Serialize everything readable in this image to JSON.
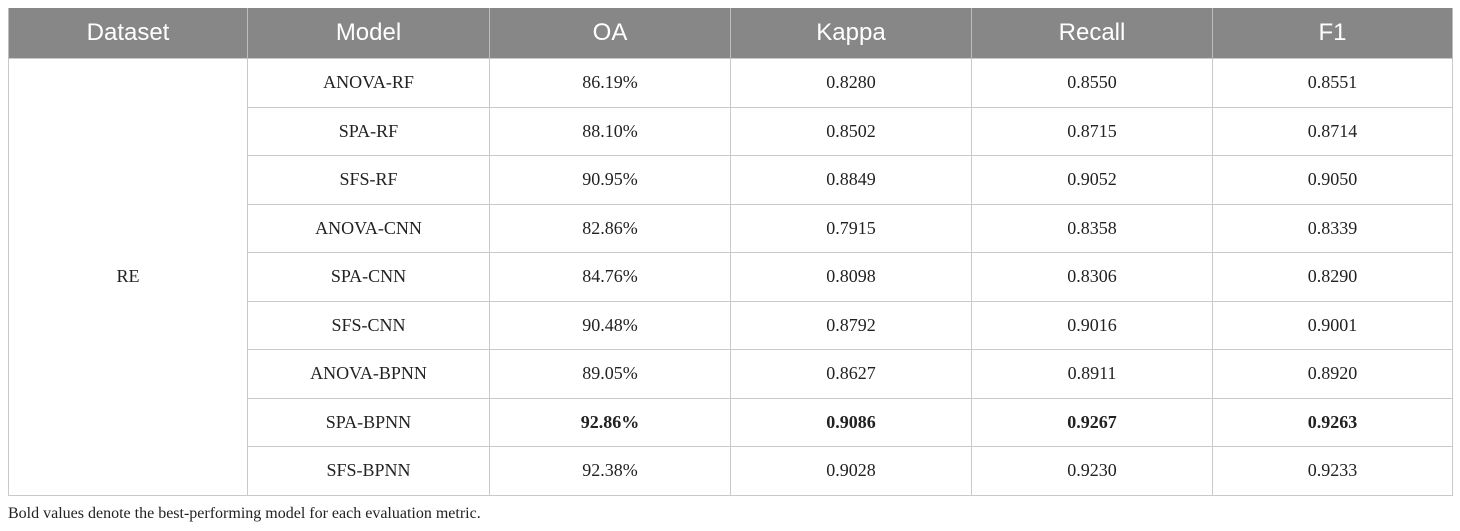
{
  "table": {
    "headers": [
      "Dataset",
      "Model",
      "OA",
      "Kappa",
      "Recall",
      "F1"
    ],
    "dataset": "RE",
    "rows": [
      {
        "model": "ANOVA-RF",
        "oa": "86.19%",
        "kappa": "0.8280",
        "recall": "0.8550",
        "f1": "0.8551",
        "bold": false
      },
      {
        "model": "SPA-RF",
        "oa": "88.10%",
        "kappa": "0.8502",
        "recall": "0.8715",
        "f1": "0.8714",
        "bold": false
      },
      {
        "model": "SFS-RF",
        "oa": "90.95%",
        "kappa": "0.8849",
        "recall": "0.9052",
        "f1": "0.9050",
        "bold": false
      },
      {
        "model": "ANOVA-CNN",
        "oa": "82.86%",
        "kappa": "0.7915",
        "recall": "0.8358",
        "f1": "0.8339",
        "bold": false
      },
      {
        "model": "SPA-CNN",
        "oa": "84.76%",
        "kappa": "0.8098",
        "recall": "0.8306",
        "f1": "0.8290",
        "bold": false
      },
      {
        "model": "SFS-CNN",
        "oa": "90.48%",
        "kappa": "0.8792",
        "recall": "0.9016",
        "f1": "0.9001",
        "bold": false
      },
      {
        "model": "ANOVA-BPNN",
        "oa": "89.05%",
        "kappa": "0.8627",
        "recall": "0.8911",
        "f1": "0.8920",
        "bold": false
      },
      {
        "model": "SPA-BPNN",
        "oa": "92.86%",
        "kappa": "0.9086",
        "recall": "0.9267",
        "f1": "0.9263",
        "bold": true
      },
      {
        "model": "SFS-BPNN",
        "oa": "92.38%",
        "kappa": "0.9028",
        "recall": "0.9230",
        "f1": "0.9233",
        "bold": false
      }
    ]
  },
  "note": "Bold values denote the best-performing model for each evaluation metric.",
  "colors": {
    "header_bg": "#878787",
    "header_text": "#ffffff",
    "border": "#c9c9c9"
  }
}
